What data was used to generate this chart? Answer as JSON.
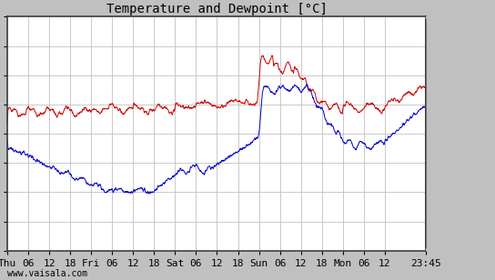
{
  "title": "Temperature and Dewpoint [°C]",
  "xlabel_bottom": "www.vaisala.com",
  "x_tick_labels": [
    "Thu",
    "06",
    "12",
    "18",
    "Fri",
    "06",
    "12",
    "18",
    "Sat",
    "06",
    "12",
    "18",
    "Sun",
    "06",
    "12",
    "18",
    "Mon",
    "06",
    "12",
    "23:45"
  ],
  "x_tick_positions": [
    0,
    6,
    12,
    18,
    24,
    30,
    36,
    42,
    48,
    54,
    60,
    66,
    72,
    78,
    84,
    90,
    96,
    102,
    108,
    119.75
  ],
  "xlim": [
    0,
    119.75
  ],
  "ylim": [
    -8,
    8
  ],
  "yticks": [
    -8,
    -6,
    -4,
    -2,
    0,
    2,
    4,
    6,
    8
  ],
  "background_color": "#c0c0c0",
  "plot_bg_color": "#ffffff",
  "grid_color": "#c0c0c0",
  "temp_color": "#cc0000",
  "dewp_color": "#0000cc",
  "title_fontsize": 10,
  "tick_fontsize": 8,
  "n_points": 1440,
  "seed": 42
}
